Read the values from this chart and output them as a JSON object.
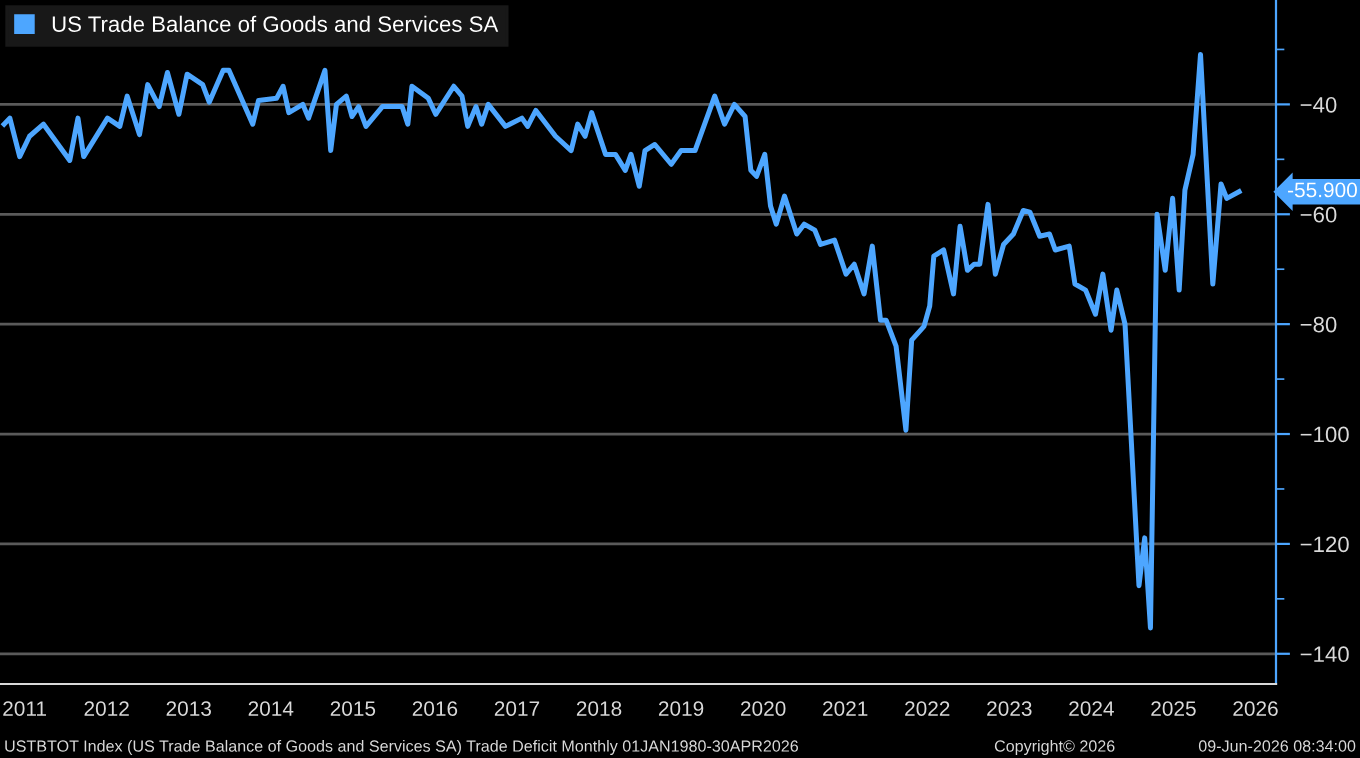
{
  "chart_data": {
    "type": "line",
    "series": [
      {
        "name": "US Trade Balance of Goods and Services SA",
        "color": "#4da6ff",
        "x": [
          2011.25,
          2011.32,
          2011.44,
          2011.56,
          2011.73,
          2012.05,
          2012.15,
          2012.22,
          2012.51,
          2012.66,
          2012.75,
          2012.9,
          2013.0,
          2013.14,
          2013.24,
          2013.38,
          2013.48,
          2013.67,
          2013.75,
          2013.92,
          2013.99,
          2014.28,
          2014.35,
          2014.57,
          2014.65,
          2014.72,
          2014.89,
          2014.96,
          2015.16,
          2015.23,
          2015.3,
          2015.42,
          2015.49,
          2015.57,
          2015.66,
          2015.86,
          2016.1,
          2016.17,
          2016.22,
          2016.42,
          2016.51,
          2016.73,
          2016.83,
          2016.9,
          2017.0,
          2017.07,
          2017.15,
          2017.36,
          2017.56,
          2017.63,
          2017.73,
          2017.97,
          2018.16,
          2018.24,
          2018.33,
          2018.41,
          2018.58,
          2018.7,
          2018.82,
          2018.89,
          2018.99,
          2019.06,
          2019.18,
          2019.38,
          2019.5,
          2019.67,
          2019.91,
          2020.03,
          2020.15,
          2020.28,
          2020.35,
          2020.42,
          2020.52,
          2020.59,
          2020.66,
          2020.76,
          2020.91,
          2021.0,
          2021.13,
          2021.2,
          2021.37,
          2021.51,
          2021.61,
          2021.73,
          2021.83,
          2021.93,
          2022.0,
          2022.12,
          2022.24,
          2022.31,
          2022.46,
          2022.53,
          2022.58,
          2022.7,
          2022.82,
          2022.9,
          2022.99,
          2023.07,
          2023.14,
          2023.24,
          2023.33,
          2023.43,
          2023.55,
          2023.67,
          2023.75,
          2023.87,
          2023.99,
          2024.06,
          2024.23,
          2024.3,
          2024.43,
          2024.55,
          2024.64,
          2024.74,
          2024.81,
          2024.91,
          2024.96,
          2025.08,
          2025.15,
          2025.22,
          2025.3,
          2025.4,
          2025.49,
          2025.57,
          2025.64,
          2025.74,
          2025.83,
          2025.98,
          2026.08,
          2026.15,
          2026.3
        ],
        "values": [
          -43.6,
          -42.5,
          -49.5,
          -45.8,
          -43.6,
          -50.2,
          -42.5,
          -49.5,
          -42.5,
          -44.0,
          -38.5,
          -45.5,
          -36.4,
          -40.4,
          -34.2,
          -41.8,
          -34.5,
          -36.4,
          -39.6,
          -33.8,
          -33.8,
          -43.6,
          -39.3,
          -38.9,
          -36.7,
          -41.5,
          -40.0,
          -42.5,
          -33.8,
          -48.4,
          -40.0,
          -38.5,
          -42.2,
          -40.4,
          -44.0,
          -40.4,
          -40.4,
          -43.6,
          -36.7,
          -38.9,
          -41.8,
          -36.7,
          -38.5,
          -44.0,
          -40.4,
          -43.6,
          -40.0,
          -44.0,
          -42.5,
          -44.0,
          -41.1,
          -45.8,
          -48.4,
          -43.6,
          -45.8,
          -41.5,
          -49.1,
          -49.1,
          -52.0,
          -49.1,
          -54.9,
          -48.4,
          -47.3,
          -50.9,
          -48.4,
          -48.4,
          -38.5,
          -43.6,
          -40.0,
          -42.2,
          -52.0,
          -53.1,
          -49.1,
          -58.5,
          -61.8,
          -56.7,
          -63.6,
          -61.8,
          -62.9,
          -65.5,
          -64.7,
          -70.9,
          -69.1,
          -74.5,
          -65.8,
          -79.3,
          -79.3,
          -84.0,
          -99.3,
          -82.9,
          -80.4,
          -76.7,
          -67.6,
          -66.5,
          -74.5,
          -62.2,
          -70.2,
          -69.1,
          -69.1,
          -58.2,
          -70.9,
          -65.5,
          -63.6,
          -59.3,
          -59.6,
          -64.0,
          -63.6,
          -66.5,
          -65.8,
          -72.7,
          -73.8,
          -78.2,
          -70.9,
          -81.1,
          -73.8,
          -80.0,
          -93.8,
          -127.6,
          -118.9,
          -135.3,
          -60.0,
          -70.2,
          -57.1,
          -73.8,
          -55.6,
          -49.1,
          -30.9,
          -72.7,
          -54.5,
          -57.1,
          -55.9
        ]
      }
    ],
    "xlim": [
      2011.2,
      2026.75
    ],
    "xticks": [
      {
        "value": 2011.5,
        "label": "2011"
      },
      {
        "value": 2012.5,
        "label": "2012"
      },
      {
        "value": 2013.5,
        "label": "2013"
      },
      {
        "value": 2014.5,
        "label": "2014"
      },
      {
        "value": 2015.5,
        "label": "2015"
      },
      {
        "value": 2016.5,
        "label": "2016"
      },
      {
        "value": 2017.5,
        "label": "2017"
      },
      {
        "value": 2018.5,
        "label": "2018"
      },
      {
        "value": 2019.5,
        "label": "2019"
      },
      {
        "value": 2020.5,
        "label": "2020"
      },
      {
        "value": 2021.5,
        "label": "2021"
      },
      {
        "value": 2022.5,
        "label": "2022"
      },
      {
        "value": 2023.5,
        "label": "2023"
      },
      {
        "value": 2024.5,
        "label": "2024"
      },
      {
        "value": 2025.5,
        "label": "2025"
      },
      {
        "value": 2026.5,
        "label": "2026"
      }
    ],
    "ylim": [
      -145.5,
      -21
    ],
    "yticks": [
      {
        "value": -30,
        "label": null
      },
      -40,
      {
        "value": -50,
        "label": null
      },
      -60,
      {
        "value": -70,
        "label": null
      },
      -80,
      {
        "value": -90,
        "label": null
      },
      -100,
      {
        "value": -110,
        "label": null
      },
      -120,
      {
        "value": -130,
        "label": null
      },
      -140
    ],
    "grid": "y",
    "legend": "top left",
    "value_labels": [
      null,
      null,
      null,
      null,
      null,
      null,
      null,
      null,
      null,
      null,
      null,
      null,
      null,
      null,
      null,
      null,
      null,
      null,
      null,
      null,
      null,
      null,
      null,
      null,
      null,
      null,
      null,
      null,
      null,
      null,
      null,
      null,
      null,
      null,
      null,
      null,
      null,
      null,
      null,
      null,
      null,
      null,
      null,
      null,
      null,
      null,
      null,
      null,
      null,
      null,
      null,
      null,
      null,
      null,
      null,
      null,
      null,
      null,
      null,
      null,
      null,
      null,
      null,
      null,
      null,
      null,
      null,
      null,
      null,
      null,
      null,
      null,
      null,
      null,
      null,
      null,
      null,
      null,
      null,
      null,
      null,
      null,
      null,
      null,
      null,
      null,
      null,
      null,
      null,
      null,
      null,
      null,
      null,
      null,
      null,
      null,
      null,
      null,
      null,
      null,
      null,
      null,
      null,
      null,
      null,
      null,
      null,
      null,
      null,
      null,
      null,
      null,
      null,
      null,
      null,
      null,
      null,
      null,
      null,
      null,
      null,
      null,
      null,
      null,
      null,
      null,
      null,
      null,
      null,
      null,
      "-55.900"
    ],
    "annotations": [
      "USTBTOT Index (US Trade Balance of Goods and Services SA) Trade Deficit Monthly 01JAN1980-30APR2026",
      "Copyright© 2026",
      "09-Jun-2026 08:34:00"
    ]
  }
}
